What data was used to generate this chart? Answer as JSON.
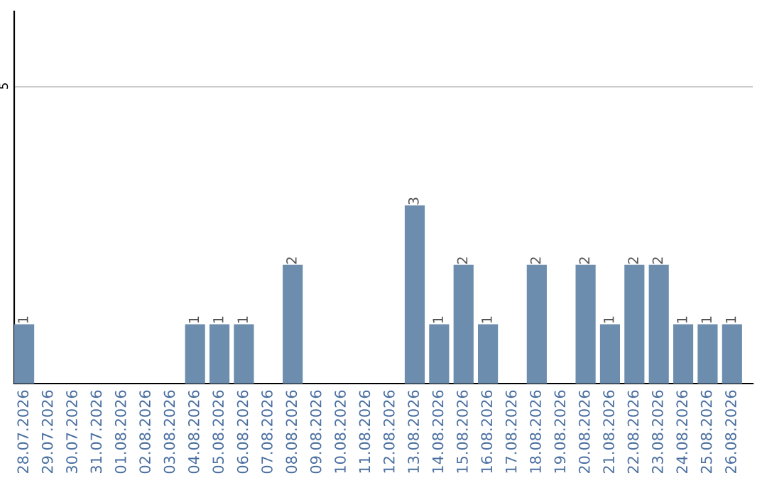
{
  "chart_data": {
    "type": "bar",
    "categories": [
      "28.07.2026",
      "29.07.2026",
      "30.07.2026",
      "31.07.2026",
      "01.08.2026",
      "02.08.2026",
      "03.08.2026",
      "04.08.2026",
      "05.08.2026",
      "06.08.2026",
      "07.08.2026",
      "08.08.2026",
      "09.08.2026",
      "10.08.2026",
      "11.08.2026",
      "12.08.2026",
      "13.08.2026",
      "14.08.2026",
      "15.08.2026",
      "16.08.2026",
      "17.08.2026",
      "18.08.2026",
      "19.08.2026",
      "20.08.2026",
      "21.08.2026",
      "22.08.2026",
      "23.08.2026",
      "24.08.2026",
      "25.08.2026",
      "26.08.2026"
    ],
    "values": [
      1,
      0,
      0,
      0,
      0,
      0,
      0,
      1,
      1,
      1,
      0,
      2,
      0,
      0,
      0,
      0,
      3,
      1,
      2,
      1,
      0,
      2,
      0,
      2,
      1,
      2,
      2,
      1,
      1,
      1
    ],
    "value_labels": [
      "1",
      null,
      null,
      null,
      null,
      null,
      null,
      "1",
      "1",
      "1",
      null,
      "2",
      null,
      null,
      null,
      null,
      "3",
      "1",
      "2",
      "1",
      null,
      "2",
      null,
      "2",
      "1",
      "2",
      "2",
      "1",
      "1",
      "1"
    ],
    "color": "#6c8dad",
    "ylim": [
      0,
      6.27
    ],
    "yticks": [
      5
    ],
    "grid": "y",
    "legend": false
  }
}
